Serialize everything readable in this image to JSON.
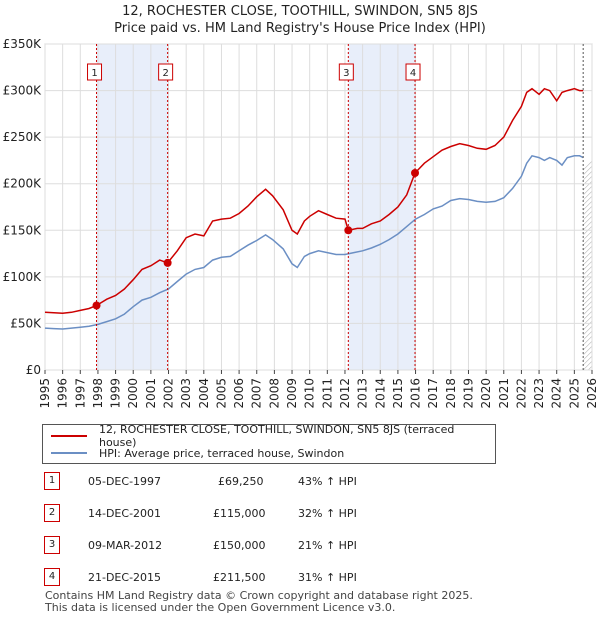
{
  "header": {
    "title_line1": "12, ROCHESTER CLOSE, TOOTHILL, SWINDON, SN5 8JS",
    "title_line2": "Price paid vs. HM Land Registry's House Price Index (HPI)"
  },
  "chart_data": {
    "type": "line",
    "title": "12, ROCHESTER CLOSE, TOOTHILL, SWINDON, SN5 8JS",
    "subtitle": "Price paid vs. HM Land Registry's House Price Index (HPI)",
    "xlabel": "",
    "ylabel": "",
    "xlim": [
      1995,
      2026
    ],
    "ylim": [
      0,
      350000
    ],
    "x_ticks": [
      1995,
      1996,
      1997,
      1998,
      1999,
      2000,
      2001,
      2002,
      2003,
      2004,
      2005,
      2006,
      2007,
      2008,
      2009,
      2010,
      2011,
      2012,
      2013,
      2014,
      2015,
      2016,
      2017,
      2018,
      2019,
      2020,
      2021,
      2022,
      2023,
      2024,
      2025,
      2026
    ],
    "y_ticks": [
      {
        "value": 0,
        "label": "£0"
      },
      {
        "value": 50000,
        "label": "£50K"
      },
      {
        "value": 100000,
        "label": "£100K"
      },
      {
        "value": 150000,
        "label": "£150K"
      },
      {
        "value": 200000,
        "label": "£200K"
      },
      {
        "value": 250000,
        "label": "£250K"
      },
      {
        "value": 300000,
        "label": "£300K"
      },
      {
        "value": 350000,
        "label": "£350K"
      }
    ],
    "grid": true,
    "shaded_periods": [
      [
        1997.92,
        2001.95
      ],
      [
        2012.19,
        2015.97
      ]
    ],
    "data_end_marker": 2025.5,
    "series": [
      {
        "name": "12, ROCHESTER CLOSE, TOOTHILL, SWINDON, SN5 8JS (terraced house)",
        "color": "#cc0000",
        "x": [
          1995,
          1995.5,
          1996,
          1996.5,
          1997,
          1997.5,
          1997.92,
          1998.5,
          1999,
          1999.5,
          2000,
          2000.5,
          2001,
          2001.5,
          2001.95,
          2002.5,
          2003,
          2003.5,
          2004,
          2004.5,
          2005,
          2005.5,
          2006,
          2006.5,
          2007,
          2007.5,
          2007.9,
          2008.5,
          2009,
          2009.3,
          2009.7,
          2010,
          2010.5,
          2011,
          2011.5,
          2012,
          2012.19,
          2012.7,
          2013,
          2013.5,
          2014,
          2014.5,
          2015,
          2015.5,
          2015.97,
          2016.5,
          2017,
          2017.5,
          2018,
          2018.5,
          2019,
          2019.5,
          2020,
          2020.5,
          2021,
          2021.5,
          2022,
          2022.3,
          2022.6,
          2023,
          2023.3,
          2023.6,
          2024,
          2024.3,
          2024.6,
          2025,
          2025.3,
          2025.5
        ],
        "y": [
          62000,
          61500,
          61000,
          62000,
          64000,
          66000,
          69250,
          76000,
          80000,
          87000,
          97000,
          108000,
          112000,
          118000,
          115000,
          128000,
          142000,
          146000,
          144000,
          160000,
          162000,
          163000,
          168000,
          176000,
          186000,
          194000,
          187000,
          172000,
          150000,
          146000,
          160000,
          165000,
          171000,
          167000,
          163000,
          162000,
          150000,
          152000,
          152000,
          157000,
          160000,
          167000,
          175000,
          188000,
          211500,
          222000,
          229000,
          236000,
          240000,
          243000,
          241000,
          238000,
          237000,
          241000,
          250000,
          268000,
          283000,
          298000,
          302000,
          296000,
          302000,
          300000,
          289000,
          298000,
          300000,
          302000,
          300000,
          300000
        ]
      },
      {
        "name": "HPI: Average price, terraced house, Swindon",
        "color": "#6b8fc4",
        "x": [
          1995,
          1995.5,
          1996,
          1996.5,
          1997,
          1997.5,
          1998,
          1998.5,
          1999,
          1999.5,
          2000,
          2000.5,
          2001,
          2001.5,
          2002,
          2002.5,
          2003,
          2003.5,
          2004,
          2004.5,
          2005,
          2005.5,
          2006,
          2006.5,
          2007,
          2007.5,
          2007.9,
          2008.5,
          2009,
          2009.3,
          2009.7,
          2010,
          2010.5,
          2011,
          2011.5,
          2012,
          2012.5,
          2013,
          2013.5,
          2014,
          2014.5,
          2015,
          2015.5,
          2016,
          2016.5,
          2017,
          2017.5,
          2018,
          2018.5,
          2019,
          2019.5,
          2020,
          2020.5,
          2021,
          2021.5,
          2022,
          2022.3,
          2022.6,
          2023,
          2023.3,
          2023.6,
          2024,
          2024.3,
          2024.6,
          2025,
          2025.3,
          2025.5
        ],
        "y": [
          45000,
          44500,
          44000,
          45000,
          46000,
          47000,
          49000,
          52000,
          55000,
          60000,
          68000,
          75000,
          78000,
          83000,
          87000,
          95000,
          103000,
          108000,
          110000,
          118000,
          121000,
          122000,
          128000,
          134000,
          139000,
          145000,
          140000,
          130000,
          114000,
          110000,
          122000,
          125000,
          128000,
          126000,
          124000,
          124000,
          126000,
          128000,
          131000,
          135000,
          140000,
          146000,
          154000,
          162000,
          167000,
          173000,
          176000,
          182000,
          184000,
          183000,
          181000,
          180000,
          181000,
          185000,
          195000,
          208000,
          222000,
          230000,
          228000,
          225000,
          228000,
          225000,
          220000,
          228000,
          230000,
          230000,
          228000
        ]
      }
    ],
    "sale_points": [
      {
        "label": "1",
        "x": 1997.92,
        "y": 69250
      },
      {
        "label": "2",
        "x": 2001.95,
        "y": 115000
      },
      {
        "label": "3",
        "x": 2012.19,
        "y": 150000
      },
      {
        "label": "4",
        "x": 2015.97,
        "y": 211500
      }
    ]
  },
  "legend": {
    "property_label": "12, ROCHESTER CLOSE, TOOTHILL, SWINDON, SN5 8JS (terraced house)",
    "hpi_label": "HPI: Average price, terraced house, Swindon"
  },
  "sales": [
    {
      "num": "1",
      "date": "05-DEC-1997",
      "price": "£69,250",
      "hpi": "43% ↑ HPI"
    },
    {
      "num": "2",
      "date": "14-DEC-2001",
      "price": "£115,000",
      "hpi": "32% ↑ HPI"
    },
    {
      "num": "3",
      "date": "09-MAR-2012",
      "price": "£150,000",
      "hpi": "21% ↑ HPI"
    },
    {
      "num": "4",
      "date": "21-DEC-2015",
      "price": "£211,500",
      "hpi": "31% ↑ HPI"
    }
  ],
  "footer": {
    "line1": "Contains HM Land Registry data © Crown copyright and database right 2025.",
    "line2": "This data is licensed under the Open Government Licence v3.0."
  },
  "colors": {
    "property": "#cc0000",
    "hpi": "#6b8fc4",
    "shade": "#e8eefa",
    "grid": "#dddddd"
  }
}
